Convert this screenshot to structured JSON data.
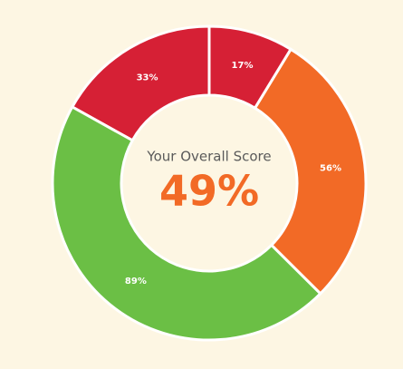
{
  "chart_data": {
    "type": "donut",
    "center_title": "Your Overall Score",
    "center_text": "49%",
    "values": [
      17,
      56,
      89,
      33
    ],
    "value_labels": [
      "17%",
      "56%",
      "89%",
      "33%"
    ],
    "colors": [
      "#d62035",
      "#f26a26",
      "#6bbf45",
      "#d62035"
    ],
    "center_text_color": "#f26a26"
  }
}
